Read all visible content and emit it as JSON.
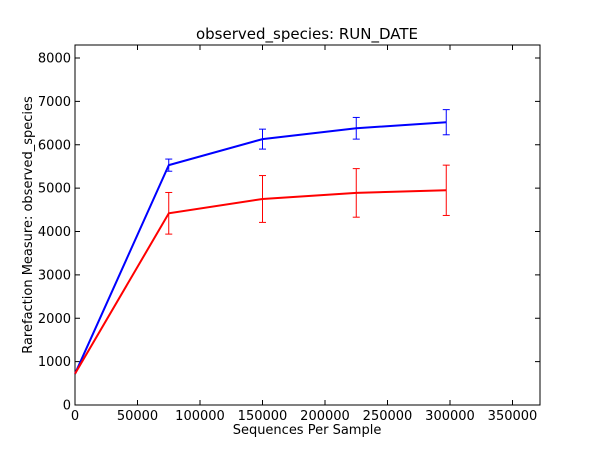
{
  "chart_data": {
    "type": "line",
    "title": "observed_species: RUN_DATE",
    "xlabel": "Sequences Per Sample",
    "ylabel": "Rarefaction Measure: observed_species",
    "xlim": [
      0,
      372000
    ],
    "ylim": [
      0,
      8300
    ],
    "xticks": [
      0,
      50000,
      100000,
      150000,
      200000,
      250000,
      300000,
      350000
    ],
    "yticks": [
      0,
      1000,
      2000,
      3000,
      4000,
      5000,
      6000,
      7000,
      8000
    ],
    "grid": false,
    "series": [
      {
        "color": "#0000ff",
        "points": [
          {
            "x": 0,
            "y": 720,
            "err": 0
          },
          {
            "x": 75000,
            "y": 5530,
            "err": 140
          },
          {
            "x": 150000,
            "y": 6130,
            "err": 230
          },
          {
            "x": 225000,
            "y": 6380,
            "err": 250
          },
          {
            "x": 297000,
            "y": 6520,
            "err": 290
          }
        ]
      },
      {
        "color": "#ff0000",
        "points": [
          {
            "x": 0,
            "y": 720,
            "err": 0
          },
          {
            "x": 75000,
            "y": 4420,
            "err": 480
          },
          {
            "x": 150000,
            "y": 4750,
            "err": 540
          },
          {
            "x": 225000,
            "y": 4890,
            "err": 560
          },
          {
            "x": 297000,
            "y": 4950,
            "err": 580
          }
        ]
      }
    ]
  }
}
